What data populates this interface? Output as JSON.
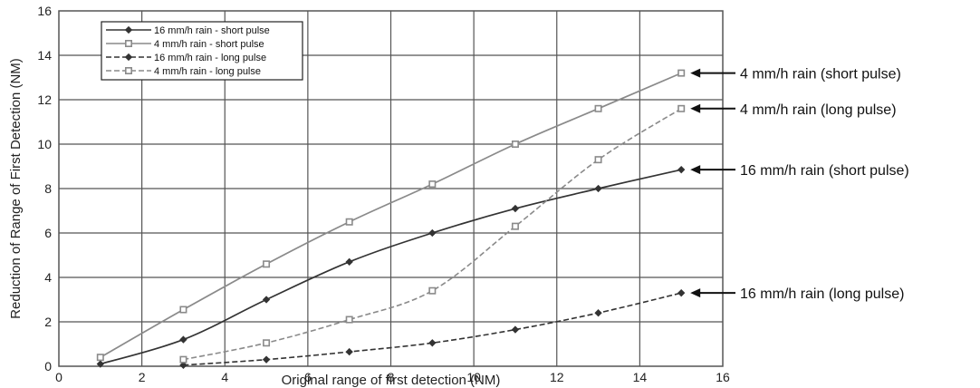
{
  "chart_data": {
    "type": "line",
    "xlabel": "Original range of first detection (NM)",
    "ylabel": "Reduction of Range of First Detection (NM)",
    "xlim": [
      0,
      16
    ],
    "ylim": [
      0,
      16
    ],
    "xticks": [
      0,
      2,
      4,
      6,
      8,
      10,
      12,
      14,
      16
    ],
    "yticks": [
      0,
      2,
      4,
      6,
      8,
      10,
      12,
      14,
      16
    ],
    "grid": true,
    "legend_position": "top-left",
    "series": [
      {
        "name": "16 mm/h rain - short pulse",
        "color": "#333333",
        "dash": "solid",
        "marker": "diamond",
        "x": [
          1,
          3,
          5,
          7,
          9,
          11,
          13,
          15
        ],
        "y": [
          0.1,
          1.2,
          3.0,
          4.7,
          6.0,
          7.1,
          8.0,
          8.85
        ]
      },
      {
        "name": "4 mm/h rain - short pulse",
        "color": "#8a8a8a",
        "dash": "solid",
        "marker": "square",
        "x": [
          1,
          3,
          5,
          7,
          9,
          11,
          13,
          15
        ],
        "y": [
          0.4,
          2.55,
          4.6,
          6.5,
          8.2,
          10.0,
          11.6,
          13.2
        ]
      },
      {
        "name": "16 mm/h rain - long pulse",
        "color": "#333333",
        "dash": "dashed",
        "marker": "diamond",
        "x": [
          3,
          5,
          7,
          9,
          11,
          13,
          15
        ],
        "y": [
          0.05,
          0.3,
          0.65,
          1.05,
          1.65,
          2.4,
          3.3
        ]
      },
      {
        "name": "4 mm/h rain - long pulse",
        "color": "#8a8a8a",
        "dash": "dashed",
        "marker": "square",
        "x": [
          3,
          5,
          7,
          9,
          11,
          13,
          15
        ],
        "y": [
          0.3,
          1.05,
          2.1,
          3.4,
          6.3,
          9.3,
          11.6
        ]
      }
    ],
    "annotations": [
      {
        "text": "4 mm/h rain (short pulse)",
        "x": 15,
        "y": 13.2
      },
      {
        "text": "4 mm/h rain (long pulse)",
        "x": 15,
        "y": 11.6
      },
      {
        "text": "16 mm/h rain (short pulse)",
        "x": 15,
        "y": 8.85
      },
      {
        "text": "16 mm/h rain (long pulse)",
        "x": 15,
        "y": 3.3
      }
    ]
  }
}
